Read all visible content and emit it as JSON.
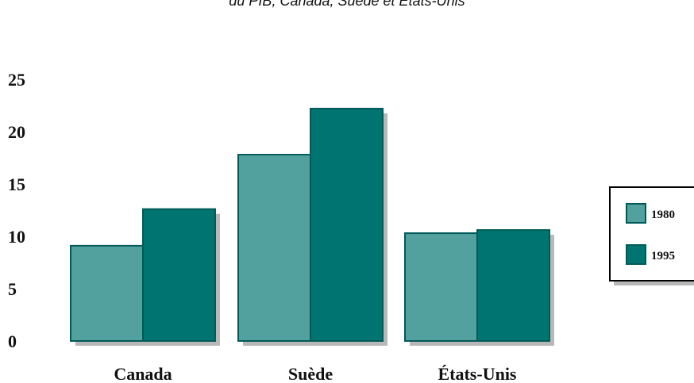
{
  "chart_data": {
    "type": "bar",
    "title": "du PIB, Canada, Suède et États-Unis",
    "categories": [
      "Canada",
      "Suède",
      "États-Unis"
    ],
    "series": [
      {
        "name": "1980",
        "values": [
          9.1,
          17.8,
          10.3
        ],
        "color": "#52a19f"
      },
      {
        "name": "1995",
        "values": [
          12.6,
          22.2,
          10.6
        ],
        "color": "#007470"
      }
    ],
    "yticks": [
      0,
      5,
      10,
      15,
      20,
      25
    ],
    "ylim": [
      0,
      25
    ],
    "grid": false,
    "legend_position": "right",
    "border_color": "#005a57",
    "shadow_color": "#b8b8b8"
  }
}
